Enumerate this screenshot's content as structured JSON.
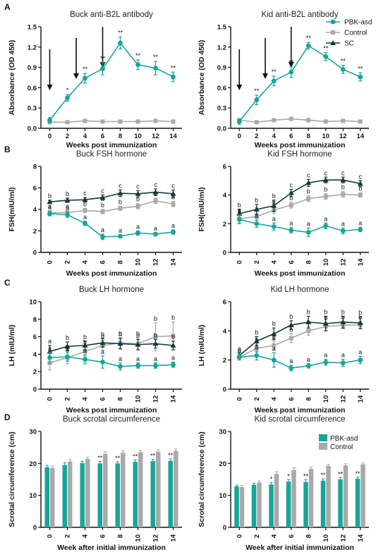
{
  "colors": {
    "teal": "#17a59a",
    "gray": "#a9a9a9",
    "dark": "#14383c",
    "arrow": "#111111"
  },
  "chart_data": [
    {
      "id": "a1",
      "panel": "A",
      "type": "line",
      "title": "Buck anti-B2L antibody",
      "xlabel": "Weeks post immunization",
      "ylabel": "Absorbance (OD 450)",
      "x": [
        0,
        2,
        4,
        6,
        8,
        10,
        12,
        14
      ],
      "xticks": [
        "0",
        "2",
        "4",
        "6",
        "8",
        "10",
        "12",
        "14"
      ],
      "yticks": [
        "0.0",
        "0.3",
        "0.6",
        "0.9",
        "1.2",
        "1.5"
      ],
      "ylim": [
        0,
        1.5
      ],
      "xlim": [
        -1,
        15
      ],
      "arrows_at_weeks": [
        0,
        3,
        6
      ],
      "series": [
        {
          "name": "PBK-asd",
          "color": "#17a59a",
          "marker": "circle",
          "values": [
            0.12,
            0.45,
            0.74,
            0.88,
            1.26,
            0.94,
            0.89,
            0.76
          ],
          "err": [
            0.04,
            0.05,
            0.07,
            0.09,
            0.09,
            0.07,
            0.1,
            0.07
          ],
          "annotations": [
            "",
            "*",
            "**",
            "**",
            "**",
            "**",
            "**",
            "**"
          ]
        },
        {
          "name": "Control",
          "color": "#a9a9a9",
          "marker": "square",
          "values": [
            0.09,
            0.09,
            0.11,
            0.1,
            0.1,
            0.1,
            0.11,
            0.1
          ],
          "err": [
            0.01,
            0.01,
            0.01,
            0.01,
            0.01,
            0.01,
            0.01,
            0.01
          ]
        }
      ]
    },
    {
      "id": "a2",
      "panel": "",
      "type": "line",
      "title": "Kid anti-B2L antibody",
      "xlabel": "Weeks post immunization",
      "ylabel": "Absorbance (OD 450)",
      "x": [
        0,
        2,
        4,
        6,
        8,
        10,
        12,
        14
      ],
      "xticks": [
        "0",
        "2",
        "4",
        "6",
        "8",
        "10",
        "12",
        "14"
      ],
      "yticks": [
        "0.0",
        "0.3",
        "0.6",
        "0.9",
        "1.2",
        "1.5"
      ],
      "ylim": [
        0,
        1.5
      ],
      "xlim": [
        -1,
        15
      ],
      "arrows_at_weeks": [
        0,
        3,
        6
      ],
      "legend": {
        "position": "top-right",
        "entries": [
          {
            "name": "PBK-asd",
            "color": "#17a59a",
            "marker": "circle"
          },
          {
            "name": "Control",
            "color": "#a9a9a9",
            "marker": "square"
          },
          {
            "name": "SC",
            "color": "#14383c",
            "marker": "triangle"
          }
        ]
      },
      "series": [
        {
          "name": "PBK-asd",
          "color": "#17a59a",
          "marker": "circle",
          "values": [
            0.1,
            0.42,
            0.7,
            0.83,
            1.22,
            1.06,
            0.87,
            0.76
          ],
          "err": [
            0.04,
            0.07,
            0.07,
            0.08,
            0.05,
            0.06,
            0.06,
            0.06
          ],
          "annotations": [
            "",
            "**",
            "**",
            "**",
            "**",
            "**",
            "**",
            "**"
          ]
        },
        {
          "name": "Control",
          "color": "#a9a9a9",
          "marker": "square",
          "values": [
            0.12,
            0.09,
            0.12,
            0.14,
            0.12,
            0.1,
            0.11,
            0.1
          ],
          "err": [
            0.01,
            0.01,
            0.01,
            0.01,
            0.01,
            0.01,
            0.01,
            0.01
          ]
        }
      ]
    },
    {
      "id": "b1",
      "panel": "B",
      "type": "line",
      "title": "Buck FSH hormone",
      "xlabel": "Weeks post immunization",
      "ylabel": "FSH(mIU/ml)",
      "x": [
        0,
        2,
        4,
        6,
        8,
        10,
        12,
        14
      ],
      "xticks": [
        "0",
        "2",
        "4",
        "6",
        "8",
        "10",
        "12",
        "14"
      ],
      "yticks": [
        "0",
        "2",
        "4",
        "6",
        "8"
      ],
      "ylim": [
        0,
        8
      ],
      "xlim": [
        -1,
        15
      ],
      "series": [
        {
          "name": "PBK-asd",
          "color": "#17a59a",
          "marker": "circle",
          "values": [
            3.6,
            3.5,
            2.7,
            1.45,
            1.5,
            1.8,
            1.7,
            1.9
          ],
          "err": [
            0.2,
            0.25,
            0.2,
            0.25,
            0.15,
            0.2,
            0.15,
            0.2
          ],
          "annotations": [
            "a",
            "a",
            "a",
            "a",
            "a",
            "a",
            "a",
            "a"
          ]
        },
        {
          "name": "Control",
          "color": "#a9a9a9",
          "marker": "square",
          "values": [
            3.7,
            3.7,
            3.9,
            3.8,
            4.1,
            4.3,
            4.8,
            4.5
          ],
          "err": [
            0.2,
            0.2,
            0.2,
            0.2,
            0.2,
            0.25,
            0.25,
            0.25
          ],
          "annotations": [
            "a",
            "a",
            "b",
            "b",
            "b",
            "b",
            "b",
            "b"
          ]
        },
        {
          "name": "SC",
          "color": "#14383c",
          "marker": "triangle",
          "values": [
            4.7,
            4.85,
            4.9,
            5.1,
            5.5,
            5.45,
            5.6,
            5.45
          ],
          "err": [
            0.15,
            0.2,
            0.2,
            0.25,
            0.3,
            0.3,
            0.3,
            0.35
          ],
          "annotations": [
            "b",
            "b",
            "c",
            "c",
            "c",
            "c",
            "c",
            "c"
          ]
        }
      ]
    },
    {
      "id": "b2",
      "panel": "",
      "type": "line",
      "title": "Kid FSH hormone",
      "xlabel": "Weeks post immunization",
      "ylabel": "FSH(mIU/ml)",
      "x": [
        0,
        2,
        4,
        6,
        8,
        10,
        12,
        14
      ],
      "xticks": [
        "0",
        "2",
        "4",
        "6",
        "8",
        "10",
        "12",
        "14"
      ],
      "yticks": [
        "0",
        "2",
        "4",
        "6"
      ],
      "ylim": [
        0,
        6
      ],
      "xlim": [
        -1,
        15
      ],
      "series": [
        {
          "name": "PBK-asd",
          "color": "#17a59a",
          "marker": "circle",
          "values": [
            2.3,
            2.0,
            1.8,
            1.55,
            1.4,
            1.85,
            1.5,
            1.6
          ],
          "err": [
            0.3,
            0.25,
            0.25,
            0.2,
            0.3,
            0.2,
            0.2,
            0.15
          ],
          "annotations": [
            "a",
            "a",
            "a",
            "a",
            "a",
            "a",
            "a",
            "a"
          ]
        },
        {
          "name": "Control",
          "color": "#a9a9a9",
          "marker": "square",
          "values": [
            2.35,
            2.5,
            2.95,
            3.3,
            3.75,
            3.9,
            4.05,
            4.0
          ],
          "err": [
            0.3,
            0.25,
            0.25,
            0.2,
            0.2,
            0.2,
            0.2,
            0.15
          ],
          "annotations": [
            "a",
            "a",
            "b",
            "b",
            "b",
            "b",
            "b",
            "b"
          ]
        },
        {
          "name": "SC",
          "color": "#14383c",
          "marker": "triangle",
          "values": [
            2.7,
            3.0,
            3.25,
            4.15,
            4.85,
            5.05,
            5.05,
            4.8
          ],
          "err": [
            0.3,
            0.35,
            0.4,
            0.25,
            0.25,
            0.2,
            0.2,
            0.2
          ],
          "annotations": [
            "b",
            "b",
            "b",
            "c",
            "c",
            "c",
            "c",
            "c"
          ]
        }
      ]
    },
    {
      "id": "c1",
      "panel": "C",
      "type": "line",
      "title": "Buck LH hormone",
      "xlabel": "Weeks post immunization",
      "ylabel": "LH (mIU/ml)",
      "x": [
        0,
        2,
        4,
        6,
        8,
        10,
        12,
        14
      ],
      "xticks": [
        "0",
        "2",
        "4",
        "6",
        "8",
        "10",
        "12",
        "14"
      ],
      "yticks": [
        "0",
        "2",
        "4",
        "6",
        "8",
        "10"
      ],
      "ylim": [
        0,
        10
      ],
      "xlim": [
        -1,
        15
      ],
      "series": [
        {
          "name": "PBK-asd",
          "color": "#17a59a",
          "marker": "circle",
          "values": [
            3.6,
            3.7,
            3.4,
            3.1,
            2.6,
            2.7,
            2.7,
            2.8
          ],
          "err": [
            0.6,
            0.5,
            0.5,
            0.7,
            0.4,
            0.3,
            0.3,
            0.3
          ],
          "annotations": [
            "a",
            "a",
            "a",
            "a",
            "a",
            "a",
            "a",
            "a"
          ]
        },
        {
          "name": "Control",
          "color": "#a9a9a9",
          "marker": "square",
          "values": [
            3.0,
            3.6,
            4.3,
            5.0,
            5.3,
            5.2,
            6.0,
            6.1
          ],
          "err": [
            0.8,
            0.7,
            0.6,
            0.6,
            0.6,
            0.7,
            1.6,
            1.6
          ],
          "annotations": [
            "a",
            "b",
            "b",
            "b",
            "b",
            "b",
            "b",
            "b"
          ]
        },
        {
          "name": "SC",
          "color": "#14383c",
          "marker": "triangle",
          "values": [
            4.3,
            4.9,
            5.0,
            5.3,
            5.2,
            5.1,
            5.2,
            5.0
          ],
          "err": [
            0.7,
            0.5,
            0.5,
            0.5,
            0.6,
            0.6,
            0.5,
            0.5
          ],
          "annotations": [
            "a",
            "b",
            "b",
            "b",
            "b",
            "b",
            "b",
            "b"
          ]
        }
      ]
    },
    {
      "id": "c2",
      "panel": "",
      "type": "line",
      "title": "Kid LH hormone",
      "xlabel": "Weeks post immunization",
      "ylabel": "LH (mIU/ml)",
      "x": [
        0,
        2,
        4,
        6,
        8,
        10,
        12,
        14
      ],
      "xticks": [
        "0",
        "2",
        "4",
        "6",
        "8",
        "10",
        "12",
        "14"
      ],
      "yticks": [
        "0",
        "2",
        "4",
        "6"
      ],
      "ylim": [
        0,
        6
      ],
      "xlim": [
        -1,
        15
      ],
      "series": [
        {
          "name": "PBK-asd",
          "color": "#17a59a",
          "marker": "circle",
          "values": [
            2.2,
            2.3,
            2.0,
            1.45,
            1.6,
            1.85,
            1.8,
            2.0
          ],
          "err": [
            0.2,
            0.3,
            0.5,
            0.2,
            0.15,
            0.2,
            0.25,
            0.25
          ],
          "annotations": [
            "a",
            "a",
            "a",
            "a",
            "a",
            "a",
            "a",
            "a"
          ]
        },
        {
          "name": "Control",
          "color": "#a9a9a9",
          "marker": "square",
          "values": [
            2.2,
            2.8,
            3.0,
            3.5,
            4.0,
            4.3,
            4.4,
            4.4
          ],
          "err": [
            0.2,
            0.3,
            0.3,
            0.3,
            0.3,
            0.3,
            0.25,
            0.25
          ],
          "annotations": [
            "a",
            "b",
            "b",
            "b",
            "b",
            "b",
            "b",
            "b"
          ]
        },
        {
          "name": "SC",
          "color": "#14383c",
          "marker": "triangle",
          "values": [
            2.3,
            3.3,
            3.8,
            4.4,
            4.6,
            4.5,
            4.6,
            4.55
          ],
          "err": [
            0.2,
            0.3,
            0.4,
            0.3,
            0.4,
            0.5,
            0.4,
            0.4
          ],
          "annotations": [
            "a",
            "b",
            "b",
            "b",
            "b",
            "b",
            "b",
            "b"
          ]
        }
      ]
    },
    {
      "id": "d1",
      "panel": "D",
      "type": "bar",
      "title": "Buck scrotal circumference",
      "xlabel": "Week after initial immunization",
      "ylabel": "Scrotal circumference (cm)",
      "categories": [
        "0",
        "2",
        "4",
        "6",
        "8",
        "10",
        "12",
        "14"
      ],
      "yticks": [
        "0",
        "10",
        "20",
        "30"
      ],
      "ylim": [
        0,
        30
      ],
      "series": [
        {
          "name": "PBK-asd",
          "color": "#17a59a",
          "values": [
            18.8,
            19.5,
            20.1,
            20.0,
            20.0,
            20.5,
            20.7,
            20.8
          ],
          "err": [
            0.6,
            0.7,
            0.6,
            0.6,
            0.5,
            0.6,
            0.6,
            0.6
          ],
          "annotations": [
            "",
            "",
            "",
            "**",
            "**",
            "**",
            "**",
            "**"
          ]
        },
        {
          "name": "Control",
          "color": "#a9a9a9",
          "values": [
            18.6,
            20.6,
            21.4,
            23.0,
            23.3,
            23.5,
            23.7,
            23.9
          ],
          "err": [
            0.6,
            0.6,
            0.5,
            0.6,
            0.6,
            0.6,
            0.6,
            0.6
          ]
        }
      ]
    },
    {
      "id": "d2",
      "panel": "",
      "type": "bar",
      "title": "Kid scrotal circumference",
      "xlabel": "Week after initial immunization",
      "ylabel": "Scrotal circumference (cm)",
      "categories": [
        "0",
        "2",
        "4",
        "6",
        "8",
        "10",
        "12",
        "14"
      ],
      "yticks": [
        "0",
        "10",
        "20",
        "30"
      ],
      "ylim": [
        0,
        30
      ],
      "legend": {
        "position": "top-right",
        "entries": [
          {
            "name": "PBK-asd",
            "color": "#17a59a"
          },
          {
            "name": "Control",
            "color": "#a9a9a9"
          }
        ]
      },
      "series": [
        {
          "name": "PBK-asd",
          "color": "#17a59a",
          "values": [
            12.8,
            13.3,
            13.4,
            14.3,
            14.2,
            14.6,
            15.0,
            15.2
          ],
          "err": [
            0.4,
            0.5,
            0.6,
            0.6,
            0.7,
            0.6,
            0.6,
            0.5
          ],
          "annotations": [
            "",
            "",
            "*",
            "*",
            "**",
            "**",
            "**",
            "**"
          ]
        },
        {
          "name": "Control",
          "color": "#a9a9a9",
          "values": [
            12.6,
            14.0,
            16.7,
            17.9,
            18.3,
            19.2,
            19.4,
            19.7
          ],
          "err": [
            0.5,
            0.5,
            0.7,
            0.7,
            0.6,
            0.5,
            0.5,
            0.5
          ]
        }
      ]
    }
  ]
}
